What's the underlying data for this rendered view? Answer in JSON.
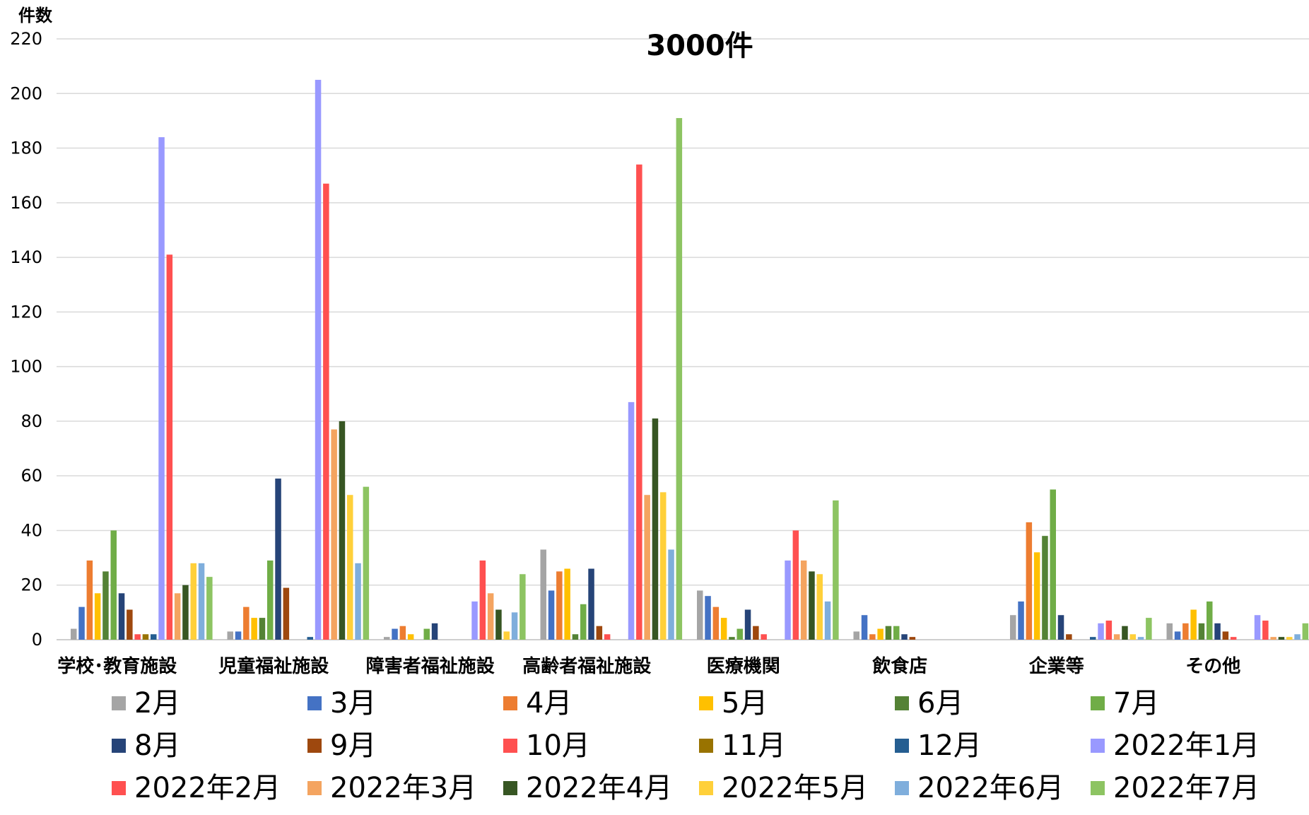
{
  "chart_data": {
    "type": "bar",
    "title": "3000件",
    "ylabel": "件数",
    "xlabel": "",
    "ylim": [
      0,
      220
    ],
    "yticks": [
      0,
      20,
      40,
      60,
      80,
      100,
      120,
      140,
      160,
      180,
      200,
      220
    ],
    "grid": true,
    "legend_position": "bottom",
    "categories": [
      "学校･教育施設",
      "児童福祉施設",
      "障害者福祉施設",
      "高齢者福祉施設",
      "医療機関",
      "飲食店",
      "企業等",
      "その他"
    ],
    "series": [
      {
        "name": "2月",
        "color": "#A5A5A5",
        "values": [
          4,
          3,
          1,
          33,
          18,
          3,
          9,
          6
        ]
      },
      {
        "name": "3月",
        "color": "#4472C4",
        "values": [
          12,
          3,
          4,
          18,
          16,
          9,
          14,
          3
        ]
      },
      {
        "name": "4月",
        "color": "#ED7D31",
        "values": [
          29,
          12,
          5,
          25,
          12,
          2,
          43,
          6
        ]
      },
      {
        "name": "5月",
        "color": "#FFC000",
        "values": [
          17,
          8,
          2,
          26,
          8,
          4,
          32,
          11
        ]
      },
      {
        "name": "6月",
        "color": "#548235",
        "values": [
          25,
          8,
          0,
          2,
          1,
          5,
          38,
          6
        ]
      },
      {
        "name": "7月",
        "color": "#70AD47",
        "values": [
          40,
          29,
          4,
          13,
          4,
          5,
          55,
          14
        ]
      },
      {
        "name": "8月",
        "color": "#264478",
        "values": [
          17,
          59,
          6,
          26,
          11,
          2,
          9,
          6
        ]
      },
      {
        "name": "9月",
        "color": "#9E480E",
        "values": [
          11,
          19,
          0,
          5,
          5,
          1,
          2,
          3
        ]
      },
      {
        "name": "10月",
        "color": "#FF5050",
        "values": [
          2,
          0,
          0,
          2,
          2,
          0,
          0,
          1
        ]
      },
      {
        "name": "11月",
        "color": "#997300",
        "values": [
          2,
          0,
          0,
          0,
          0,
          0,
          0,
          0
        ]
      },
      {
        "name": "12月",
        "color": "#255E91",
        "values": [
          2,
          1,
          0,
          0,
          0,
          0,
          1,
          0
        ]
      },
      {
        "name": "2022年1月",
        "color": "#9999FF",
        "values": [
          184,
          205,
          14,
          87,
          29,
          0,
          6,
          9
        ]
      },
      {
        "name": "2022年2月",
        "color": "#FF5050",
        "values": [
          141,
          167,
          29,
          174,
          40,
          0,
          7,
          7
        ]
      },
      {
        "name": "2022年3月",
        "color": "#F4A460",
        "values": [
          17,
          77,
          17,
          53,
          29,
          0,
          2,
          1
        ]
      },
      {
        "name": "2022年4月",
        "color": "#375623",
        "values": [
          20,
          80,
          11,
          81,
          25,
          0,
          5,
          1
        ]
      },
      {
        "name": "2022年5月",
        "color": "#FFD03A",
        "values": [
          28,
          53,
          3,
          54,
          24,
          0,
          2,
          1
        ]
      },
      {
        "name": "2022年6月",
        "color": "#7FAEDC",
        "values": [
          28,
          28,
          10,
          33,
          14,
          0,
          1,
          2
        ]
      },
      {
        "name": "2022年7月",
        "color": "#8DC462",
        "values": [
          23,
          56,
          24,
          191,
          51,
          0,
          8,
          6
        ]
      }
    ]
  }
}
